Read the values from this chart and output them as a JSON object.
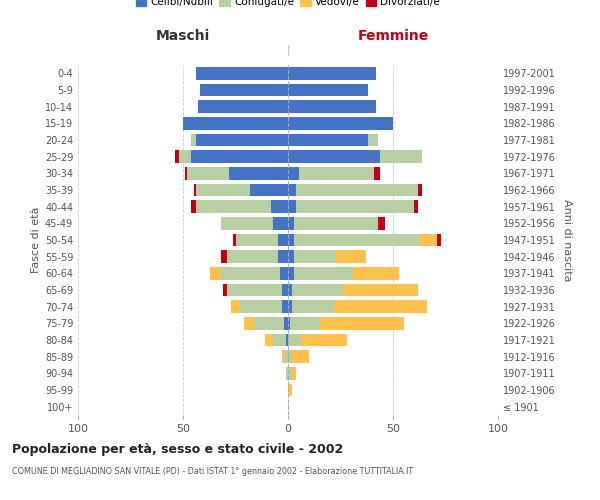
{
  "age_groups": [
    "100+",
    "95-99",
    "90-94",
    "85-89",
    "80-84",
    "75-79",
    "70-74",
    "65-69",
    "60-64",
    "55-59",
    "50-54",
    "45-49",
    "40-44",
    "35-39",
    "30-34",
    "25-29",
    "20-24",
    "15-19",
    "10-14",
    "5-9",
    "0-4"
  ],
  "birth_years": [
    "≤ 1901",
    "1902-1906",
    "1907-1911",
    "1912-1916",
    "1917-1921",
    "1922-1926",
    "1927-1931",
    "1932-1936",
    "1937-1941",
    "1942-1946",
    "1947-1951",
    "1952-1956",
    "1957-1961",
    "1962-1966",
    "1967-1971",
    "1972-1976",
    "1977-1981",
    "1982-1986",
    "1987-1991",
    "1992-1996",
    "1997-2001"
  ],
  "male": {
    "celibi": [
      0,
      0,
      0,
      0,
      1,
      2,
      3,
      3,
      4,
      5,
      5,
      7,
      8,
      18,
      28,
      46,
      44,
      50,
      43,
      42,
      44
    ],
    "coniugati": [
      0,
      0,
      1,
      2,
      6,
      14,
      20,
      26,
      28,
      24,
      20,
      25,
      36,
      26,
      20,
      6,
      2,
      0,
      0,
      0,
      0
    ],
    "vedovi": [
      0,
      0,
      0,
      1,
      4,
      5,
      4,
      0,
      5,
      0,
      0,
      0,
      0,
      0,
      0,
      0,
      0,
      0,
      0,
      0,
      0
    ],
    "divorziati": [
      0,
      0,
      0,
      0,
      0,
      0,
      0,
      2,
      0,
      3,
      1,
      0,
      2,
      1,
      1,
      2,
      0,
      0,
      0,
      0,
      0
    ]
  },
  "female": {
    "nubili": [
      0,
      0,
      0,
      0,
      0,
      1,
      2,
      2,
      3,
      3,
      3,
      3,
      4,
      4,
      5,
      44,
      38,
      50,
      42,
      38,
      42
    ],
    "coniugate": [
      0,
      0,
      2,
      2,
      6,
      14,
      20,
      24,
      28,
      20,
      60,
      40,
      56,
      58,
      36,
      20,
      5,
      0,
      0,
      0,
      0
    ],
    "vedove": [
      0,
      2,
      2,
      8,
      22,
      40,
      44,
      36,
      22,
      14,
      8,
      0,
      0,
      0,
      0,
      0,
      0,
      0,
      0,
      0,
      0
    ],
    "divorziate": [
      0,
      0,
      0,
      0,
      0,
      0,
      0,
      0,
      0,
      0,
      2,
      3,
      2,
      2,
      3,
      0,
      0,
      0,
      0,
      0,
      0
    ]
  },
  "colors": {
    "celibi": "#4472c4",
    "coniugati": "#b8cfa4",
    "vedovi": "#ffc04c",
    "divorziati": "#c0001a"
  },
  "title": "Popolazione per età, sesso e stato civile - 2002",
  "subtitle": "COMUNE DI MEGLIADINO SAN VITALE (PD) - Dati ISTAT 1° gennaio 2002 - Elaborazione TUTTITALIA.IT",
  "xlabel_left": "Maschi",
  "xlabel_right": "Femmine",
  "ylabel_left": "Fasce di età",
  "ylabel_right": "Anni di nascita",
  "xlim": 100,
  "legend_labels": [
    "Celibi/Nubili",
    "Coniugati/e",
    "Vedovi/e",
    "Divorziati/e"
  ]
}
